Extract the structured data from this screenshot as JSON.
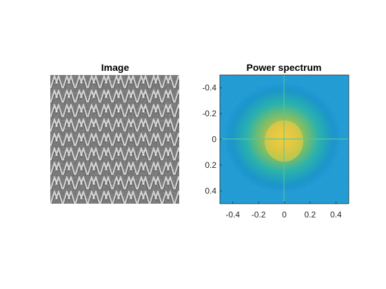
{
  "figure": {
    "background": "#ffffff"
  },
  "chart_data": [
    {
      "type": "image",
      "title": "Image",
      "description_colormap": "gray",
      "axes_visible": false
    },
    {
      "type": "heatmap",
      "title": "Power spectrum",
      "colormap": "parula",
      "xlim": [
        -0.5,
        0.5
      ],
      "ylim": [
        -0.5,
        0.5
      ],
      "y_reversed": true,
      "xticks": [
        -0.4,
        -0.2,
        0,
        0.2,
        0.4
      ],
      "xtick_labels": [
        "-0.4",
        "-0.2",
        "0",
        "0.2",
        "0.4"
      ],
      "yticks": [
        -0.4,
        -0.2,
        0,
        0.2,
        0.4
      ],
      "ytick_labels": [
        "-0.4",
        "-0.2",
        "0",
        "0.2",
        "0.4"
      ],
      "grid": false,
      "colors": {
        "low": "#0d6fc4",
        "mid": "#2bb4a8",
        "high": "#f2c93a"
      }
    }
  ]
}
